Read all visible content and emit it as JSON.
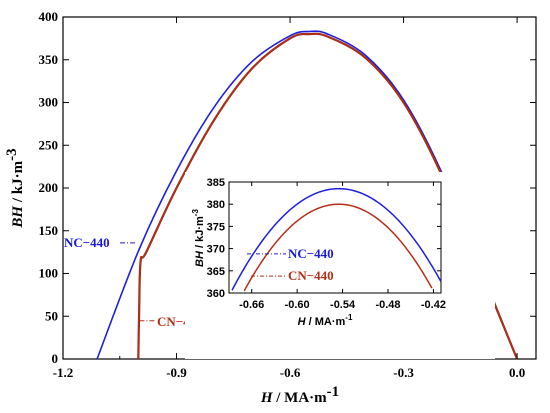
{
  "colors": {
    "nc": "#1f1fe0",
    "cn": "#b52e18",
    "cn_dark": "#7a2a10"
  },
  "chart_data": [
    {
      "type": "line",
      "xlim": [
        -1.2,
        0.05
      ],
      "ylim": [
        0,
        400
      ],
      "xticks": [
        -1.2,
        -0.9,
        -0.6,
        -0.3,
        0.0
      ],
      "xtick_labels": [
        "-1.2",
        "-0.9",
        "-0.6",
        "-0.3",
        "0.0"
      ],
      "yticks": [
        0,
        50,
        100,
        150,
        200,
        250,
        300,
        350,
        400
      ],
      "ytick_labels": [
        "0",
        "50",
        "100",
        "150",
        "200",
        "250",
        "300",
        "350",
        "400"
      ],
      "xlabel": {
        "var": "H",
        "unit": " / MA·m",
        "sup": "-1"
      },
      "ylabel": {
        "var": "BH",
        "unit": " / kJ·m",
        "sup": "-3"
      },
      "series": [
        {
          "name": "NC−440",
          "x": [
            -1.11,
            -1.0,
            -0.9,
            -0.8,
            -0.7,
            -0.6,
            -0.55,
            -0.5,
            -0.4,
            -0.3,
            -0.2,
            -0.1,
            0.0
          ],
          "y": [
            0,
            127,
            220,
            295,
            348,
            378,
            383,
            380,
            355,
            303,
            219,
            110,
            0
          ]
        },
        {
          "name": "CN−440",
          "x": [
            -1.001,
            -0.999,
            -0.995,
            -0.98,
            -0.9,
            -0.8,
            -0.7,
            -0.6,
            -0.55,
            -0.5,
            -0.4,
            -0.3,
            -0.2,
            -0.1,
            0.0
          ],
          "y": [
            0,
            50,
            114,
            125,
            200,
            280,
            340,
            375,
            380,
            377,
            352,
            300,
            216,
            108,
            0
          ]
        }
      ],
      "annotations": [
        {
          "text": "NC−440",
          "series": "NC−440"
        },
        {
          "text": "CN−440",
          "series": "CN−440"
        }
      ]
    },
    {
      "type": "line",
      "xlim": [
        -0.69,
        -0.41
      ],
      "ylim": [
        360,
        385
      ],
      "xticks": [
        -0.66,
        -0.6,
        -0.54,
        -0.48,
        -0.42
      ],
      "xtick_labels": [
        "-0.66",
        "-0.60",
        "-0.54",
        "-0.48",
        "-0.42"
      ],
      "yticks": [
        360,
        365,
        370,
        375,
        380,
        385
      ],
      "ytick_labels": [
        "360",
        "365",
        "370",
        "375",
        "380",
        "385"
      ],
      "xlabel": {
        "var": "H",
        "unit": " / MA·m",
        "sup": "-1"
      },
      "ylabel": {
        "var": "BH",
        "unit": " / kJ·m",
        "sup": "-3"
      },
      "series": [
        {
          "name": "NC−440",
          "peak_x": -0.545,
          "peak_y": 383.5,
          "curvature": 1150
        },
        {
          "name": "CN−440",
          "peak_x": -0.545,
          "peak_y": 380.0,
          "curvature": 1250
        }
      ],
      "annotations": [
        {
          "text": "NC−440",
          "series": "NC−440"
        },
        {
          "text": "CN−440",
          "series": "CN−440"
        }
      ]
    }
  ]
}
